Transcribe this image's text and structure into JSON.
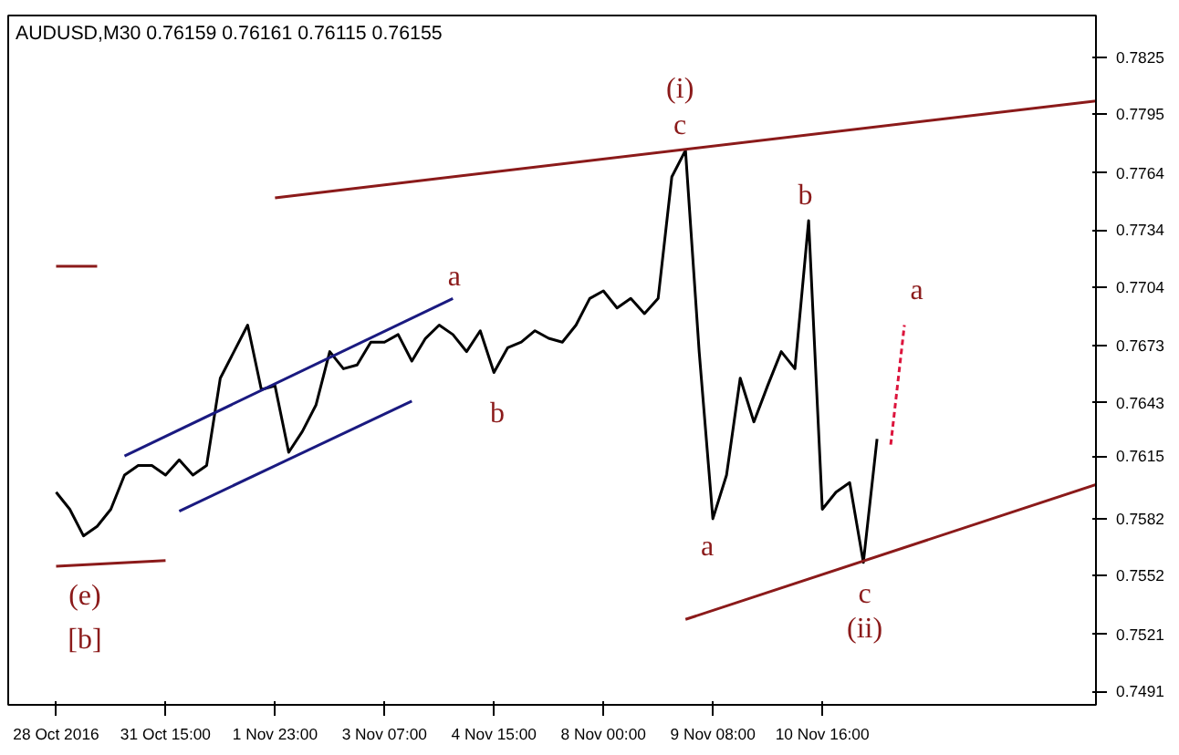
{
  "chart_data": {
    "type": "line",
    "title": "AUDUSD,M30  0.76159 0.76161 0.76115 0.76155",
    "categories": [
      "28 Oct 2016",
      null,
      null,
      null,
      null,
      null,
      null,
      null,
      "31 Oct 15:00",
      null,
      null,
      null,
      null,
      null,
      null,
      null,
      "1 Nov 23:00",
      null,
      null,
      null,
      null,
      null,
      null,
      null,
      "3 Nov 07:00",
      null,
      null,
      null,
      null,
      null,
      null,
      null,
      "4 Nov 15:00",
      null,
      null,
      null,
      null,
      null,
      null,
      null,
      "8 Nov 00:00",
      null,
      null,
      null,
      null,
      null,
      null,
      null,
      "9 Nov 08:00",
      null,
      null,
      null,
      null,
      null,
      null,
      null,
      "10 Nov 16:00",
      null,
      null,
      null,
      null,
      null,
      null,
      null,
      null,
      null,
      null,
      null,
      null,
      null,
      null,
      null,
      null,
      null,
      null,
      null,
      null
    ],
    "ylim": [
      0.7484,
      0.7847
    ],
    "yticks": [
      0.7825,
      0.7795,
      0.7764,
      0.7734,
      0.7704,
      0.7673,
      0.7643,
      0.7615,
      0.7582,
      0.7552,
      0.7521,
      0.7491
    ],
    "grid": false,
    "marker": "none",
    "line_style": "solid",
    "series": [
      {
        "color": "#000000",
        "values": [
          0.7596,
          0.7587,
          0.7573,
          0.7578,
          0.7587,
          0.7605,
          0.761,
          0.761,
          0.7605,
          0.7613,
          0.7605,
          0.761,
          0.7656,
          0.767,
          0.7684,
          0.765,
          0.7652,
          0.7617,
          0.7628,
          0.7642,
          0.767,
          0.7661,
          0.7663,
          0.7675,
          0.7675,
          0.7679,
          0.7665,
          0.7677,
          0.7684,
          0.7679,
          0.767,
          0.7681,
          0.7659,
          0.7672,
          0.7675,
          0.7681,
          0.7677,
          0.7675,
          0.7684,
          0.7698,
          0.7702,
          0.7693,
          0.7698,
          0.769,
          0.7698,
          0.7762,
          0.7776,
          0.767,
          0.7582,
          0.7605,
          0.7656,
          0.7633,
          0.7652,
          0.767,
          0.7661,
          0.7739,
          0.7587,
          0.7596,
          0.7601,
          0.7559,
          0.7624,
          null,
          null,
          null,
          null,
          null,
          null,
          null,
          null,
          null,
          null,
          null,
          null,
          null,
          null,
          null,
          null
        ]
      },
      {
        "color": "#8b1a1a",
        "values": [
          null,
          null,
          null,
          null,
          null,
          null,
          null,
          null,
          null,
          null,
          null,
          null,
          null,
          null,
          null,
          null,
          0.7751,
          null,
          null,
          null,
          null,
          null,
          null,
          null,
          null,
          null,
          null,
          null,
          null,
          null,
          null,
          null,
          null,
          null,
          null,
          null,
          null,
          null,
          null,
          null,
          null,
          null,
          null,
          null,
          null,
          null,
          null,
          null,
          null,
          null,
          null,
          null,
          null,
          null,
          null,
          null,
          null,
          null,
          null,
          null,
          null,
          null,
          null,
          null,
          null,
          null,
          null,
          null,
          null,
          null,
          null,
          null,
          null,
          null,
          null,
          null,
          0.7802
        ]
      },
      {
        "color": "#8b1a1a",
        "values": [
          0.7557,
          null,
          null,
          null,
          null,
          null,
          null,
          null,
          0.756,
          null,
          null,
          null,
          null,
          null,
          null,
          null,
          null,
          null,
          null,
          null,
          null,
          null,
          null,
          null,
          null,
          null,
          null,
          null,
          null,
          null,
          null,
          null,
          null,
          null,
          null,
          null,
          null,
          null,
          null,
          null,
          null,
          null,
          null,
          null,
          null,
          null,
          null,
          null,
          null,
          null,
          null,
          null,
          null,
          null,
          null,
          null,
          null,
          null,
          null,
          null,
          null,
          null,
          null,
          null,
          null,
          null,
          null,
          null,
          null,
          null,
          null,
          null,
          null,
          null,
          null,
          null,
          null
        ]
      },
      {
        "color": "#8b1a1a",
        "values": [
          0.7715,
          null,
          null,
          0.7715,
          null,
          null,
          null,
          null,
          null,
          null,
          null,
          null,
          null,
          null,
          null,
          null,
          null,
          null,
          null,
          null,
          null,
          null,
          null,
          null,
          null,
          null,
          null,
          null,
          null,
          null,
          null,
          null,
          null,
          null,
          null,
          null,
          null,
          null,
          null,
          null,
          null,
          null,
          null,
          null,
          null,
          null,
          null,
          null,
          null,
          null,
          null,
          null,
          null,
          null,
          null,
          null,
          null,
          null,
          null,
          null,
          null,
          null,
          null,
          null,
          null,
          null,
          null,
          null,
          null,
          null,
          null,
          null,
          null,
          null,
          null,
          null,
          null
        ]
      },
      {
        "color": "#8b1a1a",
        "values": [
          null,
          null,
          null,
          null,
          null,
          null,
          null,
          null,
          null,
          null,
          null,
          null,
          null,
          null,
          null,
          null,
          null,
          null,
          null,
          null,
          null,
          null,
          null,
          null,
          null,
          null,
          null,
          null,
          null,
          null,
          null,
          null,
          null,
          null,
          null,
          null,
          null,
          null,
          null,
          null,
          null,
          null,
          null,
          null,
          null,
          null,
          0.7529,
          null,
          null,
          null,
          null,
          null,
          null,
          null,
          null,
          null,
          null,
          null,
          null,
          null,
          null,
          null,
          null,
          null,
          null,
          null,
          null,
          null,
          null,
          null,
          null,
          null,
          null,
          null,
          null,
          null,
          0.76
        ]
      },
      {
        "color": "#1a1a80",
        "values": [
          null,
          null,
          null,
          null,
          null,
          0.7615,
          null,
          null,
          null,
          null,
          null,
          null,
          null,
          null,
          null,
          null,
          null,
          null,
          null,
          null,
          null,
          null,
          null,
          null,
          null,
          null,
          null,
          null,
          null,
          0.7698,
          null,
          null,
          null,
          null,
          null,
          null,
          null,
          null,
          null,
          null,
          null,
          null,
          null,
          null,
          null,
          null,
          null,
          null,
          null,
          null,
          null,
          null,
          null,
          null,
          null,
          null,
          null,
          null,
          null,
          null,
          null,
          null,
          null,
          null,
          null,
          null,
          null,
          null,
          null,
          null,
          null,
          null,
          null,
          null,
          null,
          null,
          null
        ]
      },
      {
        "color": "#1a1a80",
        "values": [
          null,
          null,
          null,
          null,
          null,
          null,
          null,
          null,
          null,
          0.7586,
          null,
          null,
          null,
          null,
          null,
          null,
          null,
          null,
          null,
          null,
          null,
          null,
          null,
          null,
          null,
          null,
          0.7644,
          null,
          null,
          null,
          null,
          null,
          null,
          null,
          null,
          null,
          null,
          null,
          null,
          null,
          null,
          null,
          null,
          null,
          null,
          null,
          null,
          null,
          null,
          null,
          null,
          null,
          null,
          null,
          null,
          null,
          null,
          null,
          null,
          null,
          null,
          null,
          null,
          null,
          null,
          null,
          null,
          null,
          null,
          null,
          null,
          null,
          null,
          null,
          null,
          null,
          null
        ]
      },
      {
        "color": "#dc143c",
        "line_style": "dotted",
        "values": [
          null,
          null,
          null,
          null,
          null,
          null,
          null,
          null,
          null,
          null,
          null,
          null,
          null,
          null,
          null,
          null,
          null,
          null,
          null,
          null,
          null,
          null,
          null,
          null,
          null,
          null,
          null,
          null,
          null,
          null,
          null,
          null,
          null,
          null,
          null,
          null,
          null,
          null,
          null,
          null,
          null,
          null,
          null,
          null,
          null,
          null,
          null,
          null,
          null,
          null,
          null,
          null,
          null,
          null,
          null,
          null,
          null,
          null,
          null,
          null,
          null,
          0.7621,
          0.7684,
          null,
          null,
          null,
          null,
          null,
          null,
          null,
          null,
          null,
          null,
          null,
          null,
          null,
          null
        ]
      }
    ],
    "annotations": [
      "c",
      "(i)",
      "a",
      "b",
      "a",
      "b",
      "a",
      "c",
      "(ii)",
      "(e)",
      "[b]"
    ]
  }
}
